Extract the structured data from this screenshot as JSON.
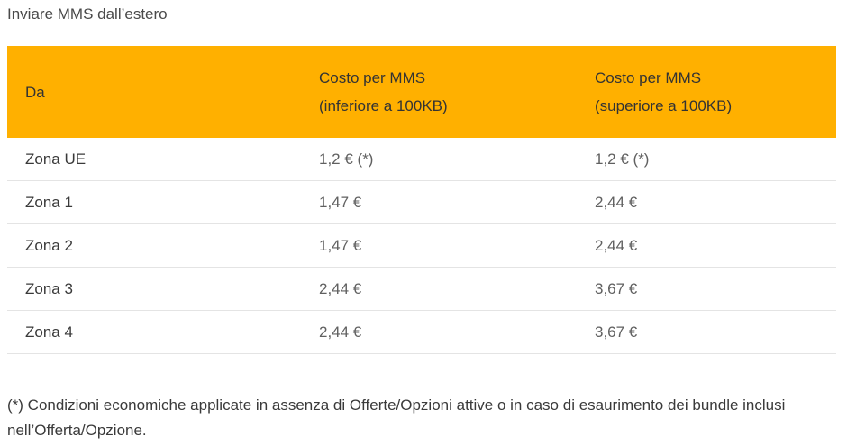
{
  "page": {
    "title": "Inviare MMS dall’estero"
  },
  "table": {
    "header": {
      "col1": "Da",
      "col2_line1": "Costo per MMS",
      "col2_line2": "(inferiore a 100KB)",
      "col3_line1": "Costo per MMS",
      "col3_line2": "(superiore a 100KB)"
    },
    "header_color": "#ffb000",
    "rows": [
      {
        "zone": "Zona UE",
        "under": "1,2 € (*)",
        "over": "1,2 € (*)"
      },
      {
        "zone": "Zona 1",
        "under": "1,47 €",
        "over": "2,44 €"
      },
      {
        "zone": "Zona 2",
        "under": "1,47 €",
        "over": "2,44 €"
      },
      {
        "zone": "Zona 3",
        "under": "2,44 €",
        "over": "3,67 €"
      },
      {
        "zone": "Zona 4",
        "under": "2,44 €",
        "over": "3,67 €"
      }
    ]
  },
  "footnote": "(*) Condizioni economiche applicate in assenza di Offerte/Opzioni attive o in caso di esaurimento dei bundle inclusi nell’Offerta/Opzione."
}
